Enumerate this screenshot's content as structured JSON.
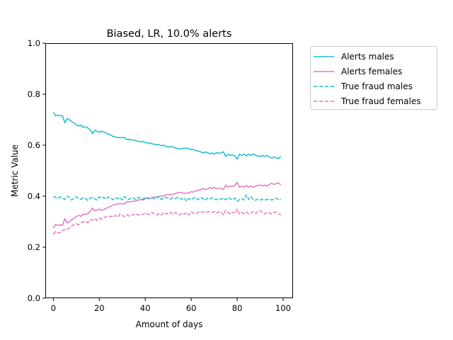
{
  "chart_data": {
    "type": "line",
    "title": "Biased, LR, 10.0% alerts",
    "xlabel": "Amount of days",
    "ylabel": "Metric Value",
    "xlim": [
      -3.5,
      104
    ],
    "ylim": [
      0.0,
      1.0
    ],
    "xticks": [
      0,
      20,
      40,
      60,
      80,
      100
    ],
    "yticks": [
      0.0,
      0.2,
      0.4,
      0.6,
      0.8,
      1.0
    ],
    "xtick_labels": [
      "0",
      "20",
      "40",
      "60",
      "80",
      "100"
    ],
    "ytick_labels": [
      "0.0",
      "0.2",
      "0.4",
      "0.6",
      "0.8",
      "1.0"
    ],
    "grid": false,
    "legend_position": "outside-right-top",
    "series": [
      {
        "name": "Alerts males",
        "color": "#17becf",
        "dash": "solid",
        "values": [
          0.73,
          0.715,
          0.718,
          0.716,
          0.715,
          0.688,
          0.705,
          0.7,
          0.693,
          0.687,
          0.68,
          0.676,
          0.679,
          0.67,
          0.672,
          0.668,
          0.66,
          0.646,
          0.658,
          0.655,
          0.65,
          0.655,
          0.652,
          0.648,
          0.643,
          0.64,
          0.634,
          0.632,
          0.63,
          0.63,
          0.63,
          0.63,
          0.622,
          0.623,
          0.621,
          0.62,
          0.618,
          0.615,
          0.613,
          0.615,
          0.61,
          0.609,
          0.608,
          0.606,
          0.603,
          0.602,
          0.602,
          0.598,
          0.6,
          0.595,
          0.593,
          0.594,
          0.593,
          0.59,
          0.586,
          0.585,
          0.587,
          0.588,
          0.588,
          0.587,
          0.582,
          0.584,
          0.579,
          0.577,
          0.575,
          0.569,
          0.573,
          0.572,
          0.566,
          0.57,
          0.565,
          0.571,
          0.568,
          0.57,
          0.574,
          0.556,
          0.565,
          0.56,
          0.562,
          0.558,
          0.545,
          0.565,
          0.56,
          0.565,
          0.558,
          0.565,
          0.56,
          0.566,
          0.56,
          0.558,
          0.556,
          0.56,
          0.556,
          0.56,
          0.554,
          0.549,
          0.554,
          0.55,
          0.548,
          0.556
        ]
      },
      {
        "name": "Alerts females",
        "color": "#e377c2",
        "dash": "solid",
        "values": [
          0.275,
          0.29,
          0.285,
          0.288,
          0.286,
          0.312,
          0.295,
          0.3,
          0.308,
          0.313,
          0.32,
          0.325,
          0.321,
          0.33,
          0.328,
          0.332,
          0.34,
          0.354,
          0.342,
          0.345,
          0.35,
          0.345,
          0.348,
          0.352,
          0.357,
          0.36,
          0.366,
          0.368,
          0.37,
          0.37,
          0.37,
          0.37,
          0.378,
          0.377,
          0.379,
          0.38,
          0.382,
          0.385,
          0.387,
          0.385,
          0.39,
          0.391,
          0.392,
          0.394,
          0.397,
          0.398,
          0.398,
          0.402,
          0.4,
          0.405,
          0.407,
          0.406,
          0.407,
          0.41,
          0.414,
          0.415,
          0.413,
          0.412,
          0.412,
          0.413,
          0.418,
          0.416,
          0.421,
          0.423,
          0.425,
          0.431,
          0.427,
          0.428,
          0.434,
          0.43,
          0.435,
          0.429,
          0.432,
          0.43,
          0.426,
          0.444,
          0.435,
          0.44,
          0.438,
          0.442,
          0.455,
          0.435,
          0.44,
          0.435,
          0.442,
          0.435,
          0.44,
          0.434,
          0.44,
          0.442,
          0.444,
          0.44,
          0.444,
          0.44,
          0.446,
          0.451,
          0.446,
          0.45,
          0.452,
          0.444
        ]
      },
      {
        "name": "True fraud males",
        "color": "#17becf",
        "dash": "dashed",
        "values": [
          0.4,
          0.395,
          0.39,
          0.398,
          0.392,
          0.388,
          0.4,
          0.396,
          0.385,
          0.392,
          0.398,
          0.39,
          0.388,
          0.394,
          0.391,
          0.383,
          0.392,
          0.396,
          0.39,
          0.385,
          0.398,
          0.392,
          0.395,
          0.388,
          0.398,
          0.393,
          0.386,
          0.394,
          0.391,
          0.395,
          0.385,
          0.399,
          0.39,
          0.387,
          0.394,
          0.392,
          0.386,
          0.396,
          0.393,
          0.388,
          0.396,
          0.394,
          0.389,
          0.395,
          0.39,
          0.392,
          0.4,
          0.387,
          0.392,
          0.396,
          0.392,
          0.388,
          0.394,
          0.39,
          0.396,
          0.392,
          0.388,
          0.394,
          0.38,
          0.391,
          0.386,
          0.392,
          0.396,
          0.386,
          0.394,
          0.392,
          0.383,
          0.392,
          0.388,
          0.394,
          0.388,
          0.386,
          0.392,
          0.388,
          0.393,
          0.386,
          0.395,
          0.39,
          0.385,
          0.393,
          0.38,
          0.387,
          0.391,
          0.385,
          0.405,
          0.388,
          0.398,
          0.387,
          0.384,
          0.39,
          0.385,
          0.388,
          0.385,
          0.387,
          0.39,
          0.385,
          0.388,
          0.393,
          0.385,
          0.388
        ]
      },
      {
        "name": "True fraud females",
        "color": "#e377c2",
        "dash": "dashed",
        "values": [
          0.25,
          0.262,
          0.256,
          0.258,
          0.265,
          0.27,
          0.268,
          0.276,
          0.282,
          0.29,
          0.292,
          0.288,
          0.294,
          0.3,
          0.302,
          0.296,
          0.308,
          0.306,
          0.312,
          0.305,
          0.314,
          0.31,
          0.316,
          0.32,
          0.318,
          0.322,
          0.316,
          0.325,
          0.318,
          0.33,
          0.324,
          0.32,
          0.328,
          0.322,
          0.326,
          0.328,
          0.332,
          0.326,
          0.33,
          0.328,
          0.334,
          0.33,
          0.328,
          0.336,
          0.33,
          0.326,
          0.332,
          0.326,
          0.336,
          0.33,
          0.334,
          0.338,
          0.328,
          0.336,
          0.332,
          0.326,
          0.334,
          0.33,
          0.336,
          0.326,
          0.338,
          0.334,
          0.33,
          0.338,
          0.34,
          0.336,
          0.34,
          0.338,
          0.34,
          0.336,
          0.34,
          0.334,
          0.338,
          0.34,
          0.326,
          0.345,
          0.336,
          0.33,
          0.338,
          0.332,
          0.35,
          0.33,
          0.336,
          0.332,
          0.338,
          0.33,
          0.334,
          0.34,
          0.332,
          0.34,
          0.344,
          0.336,
          0.33,
          0.338,
          0.334,
          0.33,
          0.336,
          0.338,
          0.332,
          0.326
        ]
      }
    ]
  }
}
